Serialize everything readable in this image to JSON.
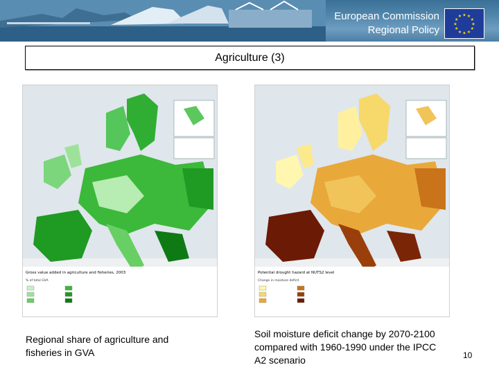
{
  "header": {
    "brand_line1": "European Commission",
    "brand_line2": "Regional Policy",
    "banner_colors": {
      "sky": "#4f85ab",
      "water": "#2e5f86"
    },
    "flag_color": "#1f3c9a",
    "star_color": "#ffdd00"
  },
  "slide": {
    "title": "Agriculture (3)",
    "page_number": "10"
  },
  "maps": [
    {
      "id": "gva",
      "title_text": "Gross value added in agriculture and fisheries, 2003",
      "legend_title": "% of total GVA",
      "palette": [
        "#c9f0c6",
        "#9ee29a",
        "#67cf64",
        "#3cb83a",
        "#1f9a22",
        "#0e7a14"
      ],
      "caption": "Regional share of agriculture and fisheries in GVA"
    },
    {
      "id": "drought",
      "title_text": "Potential drought hazard at NUTS2 level",
      "legend_title": "Change in moisture deficit",
      "palette": [
        "#fff6b0",
        "#f7d86a",
        "#e8a93a",
        "#c9731a",
        "#9a3f0c",
        "#6b1a05"
      ],
      "caption": "Soil moisture deficit change by 2070-2100 compared with 1960-1990 under the IPCC A2 scenario"
    }
  ]
}
